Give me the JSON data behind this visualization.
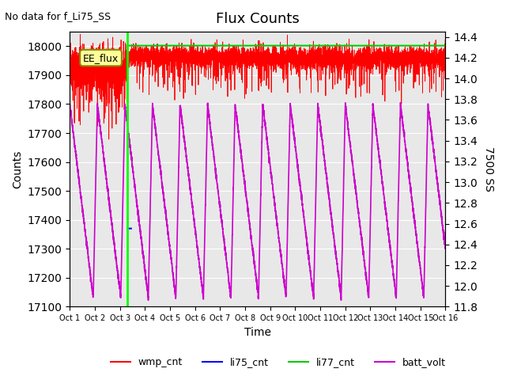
{
  "title": "Flux Counts",
  "no_data_text": "No data for f_Li75_SS",
  "xlabel": "Time",
  "ylabel_left": "Counts",
  "ylabel_right": "7500 SS",
  "annotation_text": "EE_flux",
  "ylim_left": [
    17100,
    18050
  ],
  "ylim_right": [
    11.8,
    14.45
  ],
  "x_tick_days": [
    1,
    2,
    3,
    4,
    5,
    6,
    7,
    8,
    9,
    10,
    11,
    12,
    13,
    14,
    15,
    16
  ],
  "x_tick_labels": [
    "Oct 1",
    "Oct 2",
    "Oct 3",
    "Oct 4",
    "Oct 5",
    "Oct 6",
    "Oct 7",
    "Oct 8",
    "Oct 9",
    "Oct 10",
    "Oct 11",
    "Oct 12",
    "Oct 13",
    "Oct 14",
    "Oct 15",
    "Oct 16"
  ],
  "green_vline_day": 2.3,
  "wmp_base": 17960,
  "li77_level": 18002.0,
  "li75_level": 17370.0,
  "batt_period_days": 1.1,
  "batt_min": 17130.0,
  "batt_max": 17800.0,
  "colors": {
    "wmp_cnt": "#ff0000",
    "li75_cnt": "#0000ff",
    "li77_cnt": "#00cc00",
    "batt_volt": "#cc00cc",
    "annotation_face": "#ffff99",
    "annotation_edge": "#888800",
    "background": "#e8e8e8",
    "vline": "#00ff00"
  },
  "legend_entries": [
    "wmp_cnt",
    "li75_cnt",
    "li77_cnt",
    "batt_volt"
  ],
  "legend_colors": [
    "#ff0000",
    "#0000ff",
    "#00cc00",
    "#cc00cc"
  ]
}
